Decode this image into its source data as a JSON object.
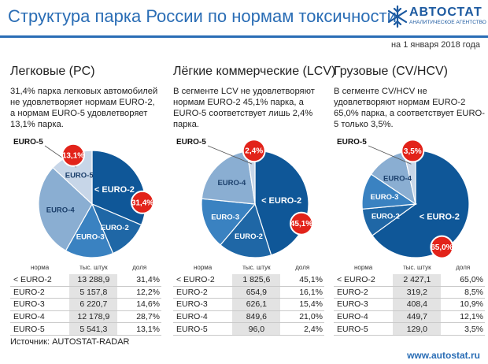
{
  "header": {
    "title": "Структура парка России по нормам токсичности",
    "logo_name": "АВТОСТАТ",
    "logo_sub": "АНАЛИТИЧЕСКОЕ АГЕНТСТВО",
    "date": "на 1 января 2018 года"
  },
  "table_headers": {
    "norm": "норма",
    "count": "тыс. штук",
    "share": "доля"
  },
  "colors": {
    "EURO-2_lt": "#0f5798",
    "EURO-2": "#1f67a6",
    "EURO-3": "#3a82c1",
    "EURO-4": "#8aaed2",
    "EURO-5": "#c7d6e8",
    "badge": "#e2231a"
  },
  "chart_data": [
    {
      "type": "pie",
      "title": "Легковые (PC)",
      "description": "31,4% парка легковых автомобилей не удовлетворяет нормам EURO-2, а нормам EURO-5 удовлетворяет 13,1% парка.",
      "categories": [
        "< EURO-2",
        "EURO-2",
        "EURO-3",
        "EURO-4",
        "EURO-5"
      ],
      "values": [
        31.4,
        12.2,
        14.6,
        28.7,
        13.1
      ],
      "counts": [
        13288.9,
        5157.8,
        6220.7,
        12178.9,
        5541.3
      ],
      "slice_labels": [
        "< EURO-2",
        "EURO-2",
        "EURO-3",
        "EURO-4",
        "EURO-5"
      ],
      "badges": {
        "< EURO-2": "31,4%",
        "EURO-5": "13,1%"
      },
      "table": [
        [
          "< EURO-2",
          "13 288,9",
          "31,4%"
        ],
        [
          "EURO-2",
          "5 157,8",
          "12,2%"
        ],
        [
          "EURO-3",
          "6 220,7",
          "14,6%"
        ],
        [
          "EURO-4",
          "12 178,9",
          "28,7%"
        ],
        [
          "EURO-5",
          "5 541,3",
          "13,1%"
        ]
      ]
    },
    {
      "type": "pie",
      "title": "Лёгкие коммерческие (LCV)",
      "description": "В сегменте LCV не удовлетворяют нормам EURO-2 45,1% парка, а EURO-5 соответствует лишь 2,4% парка.",
      "categories": [
        "< EURO-2",
        "EURO-2",
        "EURO-3",
        "EURO-4",
        "EURO-5"
      ],
      "values": [
        45.1,
        16.1,
        15.4,
        21.0,
        2.4
      ],
      "counts": [
        1825.6,
        654.9,
        626.1,
        849.6,
        96.0
      ],
      "slice_labels": [
        "< EURO-2",
        "EURO-2",
        "EURO-3",
        "EURO-4",
        ""
      ],
      "badges": {
        "< EURO-2": "45,1%",
        "EURO-5": "2,4%"
      },
      "table": [
        [
          "< EURO-2",
          "1 825,6",
          "45,1%"
        ],
        [
          "EURO-2",
          "654,9",
          "16,1%"
        ],
        [
          "EURO-3",
          "626,1",
          "15,4%"
        ],
        [
          "EURO-4",
          "849,6",
          "21,0%"
        ],
        [
          "EURO-5",
          "96,0",
          "2,4%"
        ]
      ]
    },
    {
      "type": "pie",
      "title": "Грузовые (CV/HCV)",
      "description": "В сегменте CV/HCV не удовлетворяют нормам EURO-2 65,0% парка, а соответствует EURO-5 только 3,5%.",
      "categories": [
        "< EURO-2",
        "EURO-2",
        "EURO-3",
        "EURO-4",
        "EURO-5"
      ],
      "values": [
        65.0,
        8.5,
        10.9,
        12.1,
        3.5
      ],
      "counts": [
        2427.1,
        319.2,
        408.4,
        449.7,
        129.0
      ],
      "slice_labels": [
        "< EURO-2",
        "EURO-2",
        "EURO-3",
        "EURO-4",
        ""
      ],
      "badges": {
        "< EURO-2": "65,0%",
        "EURO-5": "3,5%"
      },
      "table": [
        [
          "< EURO-2",
          "2 427,1",
          "65,0%"
        ],
        [
          "EURO-2",
          "319,2",
          "8,5%"
        ],
        [
          "EURO-3",
          "408,4",
          "10,9%"
        ],
        [
          "EURO-4",
          "449,7",
          "12,1%"
        ],
        [
          "EURO-5",
          "129,0",
          "3,5%"
        ]
      ]
    }
  ],
  "footer": {
    "source": "Источник: AUTOSTAT-RADAR",
    "url": "www.autostat.ru"
  }
}
